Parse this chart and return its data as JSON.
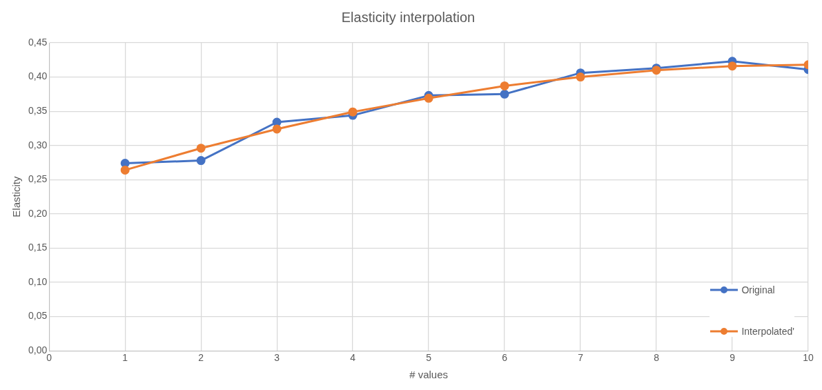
{
  "chart_data": {
    "type": "line",
    "title": "Elasticity interpolation",
    "xlabel": "# values",
    "ylabel": "Elasticity",
    "x": [
      1,
      2,
      3,
      4,
      5,
      6,
      7,
      8,
      9,
      10
    ],
    "series": [
      {
        "name": "Original",
        "color": "#4472c4",
        "values": [
          0.274,
          0.278,
          0.334,
          0.344,
          0.373,
          0.375,
          0.406,
          0.413,
          0.423,
          0.411
        ]
      },
      {
        "name": "Interpolated'",
        "color": "#ed7d31",
        "values": [
          0.264,
          0.296,
          0.324,
          0.349,
          0.369,
          0.387,
          0.4,
          0.41,
          0.416,
          0.418
        ]
      }
    ],
    "xlim": [
      0,
      10
    ],
    "xticks": [
      0,
      1,
      2,
      3,
      4,
      5,
      6,
      7,
      8,
      9,
      10
    ],
    "ylim": [
      0,
      0.45
    ],
    "yticks": [
      {
        "value": 0,
        "label": "0,00"
      },
      {
        "value": 0.05,
        "label": "0,05"
      },
      {
        "value": 0.1,
        "label": "0,10"
      },
      {
        "value": 0.15,
        "label": "0,15"
      },
      {
        "value": 0.2,
        "label": "0,20"
      },
      {
        "value": 0.25,
        "label": "0,25"
      },
      {
        "value": 0.3,
        "label": "0,30"
      },
      {
        "value": 0.35,
        "label": "0,35"
      },
      {
        "value": 0.4,
        "label": "0,40"
      },
      {
        "value": 0.45,
        "label": "0,45"
      }
    ],
    "grid": true,
    "legend": "bottom right",
    "marker": "circle",
    "line_style": "solid"
  }
}
